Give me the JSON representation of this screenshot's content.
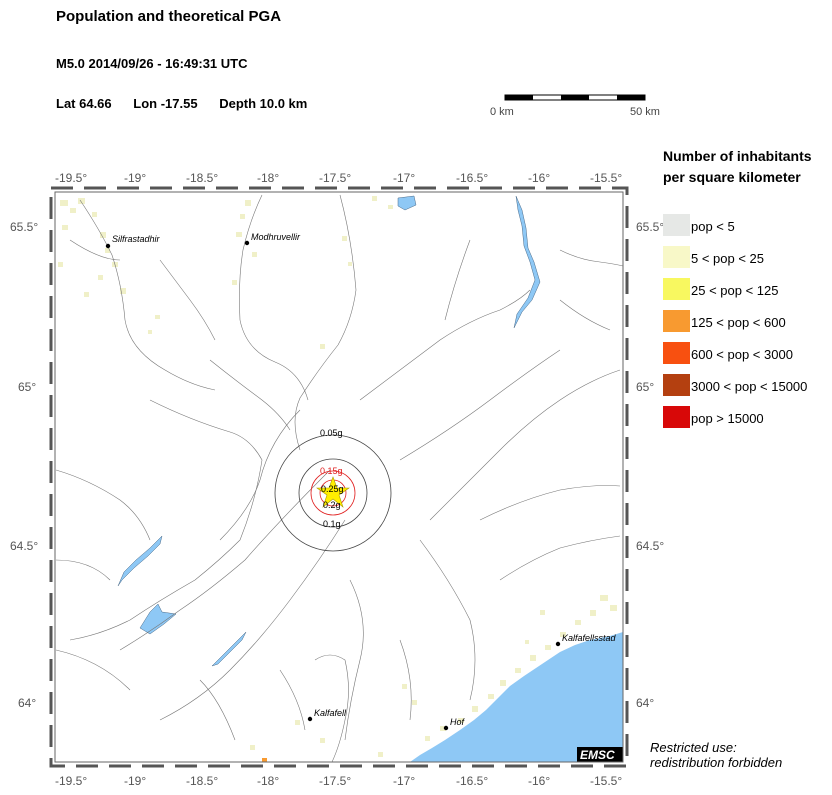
{
  "header": {
    "title": "Population and theoretical PGA",
    "event": "M5.0  2014/09/26 - 16:49:31 UTC",
    "lat": "Lat 64.66",
    "lon": "Lon -17.55",
    "depth": "Depth  10.0 km"
  },
  "scale_bar": {
    "start_label": "0 km",
    "end_label": "50 km"
  },
  "map": {
    "lon_ticks": [
      "-19.5°",
      "-19°",
      "-18.5°",
      "-18°",
      "-17.5°",
      "-17°",
      "-16.5°",
      "-16°",
      "-15.5°"
    ],
    "lat_ticks": [
      "65.5°",
      "65°",
      "64.5°",
      "64°"
    ],
    "places": [
      {
        "name": "Silfrastadhir"
      },
      {
        "name": "Modhruvellir"
      },
      {
        "name": "Kalfafell"
      },
      {
        "name": "Hof"
      },
      {
        "name": "Kalfafellsstad"
      }
    ],
    "pga_labels": [
      "0.05g",
      "0.15g",
      "0.25g",
      "0.2g",
      "0.1g"
    ],
    "logo": "EMSC",
    "colors": {
      "sea": "#8ec8f5",
      "river": "#7fbfee",
      "pga_outer": "#444444",
      "pga_inner": "#e02020",
      "epicenter": "#ffee00"
    }
  },
  "legend": {
    "title_line1": "Number of inhabitants",
    "title_line2": "per square kilometer",
    "items": [
      {
        "label": "pop < 5",
        "color": "#e6e8e6"
      },
      {
        "label": "5 < pop < 25",
        "color": "#f8f8c8"
      },
      {
        "label": "25 < pop < 125",
        "color": "#f8f860"
      },
      {
        "label": "125 < pop < 600",
        "color": "#f89a30"
      },
      {
        "label": "600 < pop < 3000",
        "color": "#f85010"
      },
      {
        "label": "3000 < pop < 15000",
        "color": "#b44010"
      },
      {
        "label": "pop > 15000",
        "color": "#d80808"
      }
    ]
  },
  "notice": {
    "line1": "Restricted use:",
    "line2": "redistribution forbidden"
  }
}
